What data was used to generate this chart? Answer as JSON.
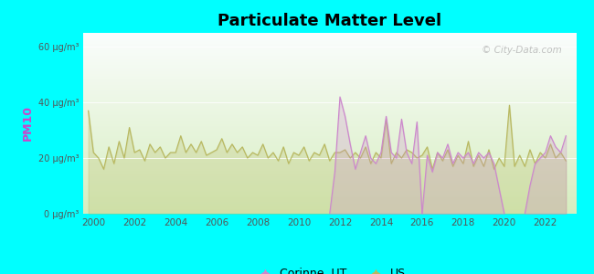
{
  "title": "Particulate Matter Level",
  "ylabel": "PM10",
  "background_color": "#00FFFF",
  "ylim": [
    0,
    65
  ],
  "yticks": [
    0,
    20,
    40,
    60
  ],
  "ytick_labels": [
    "0 μg/m³",
    "20 μg/m³",
    "40 μg/m³",
    "60 μg/m³"
  ],
  "xlim_start": 1999.5,
  "xlim_end": 2023.5,
  "xticks": [
    2000,
    2002,
    2004,
    2006,
    2008,
    2010,
    2012,
    2014,
    2016,
    2018,
    2020,
    2022
  ],
  "corinne_color": "#cc88cc",
  "us_color": "#b8b860",
  "watermark": "© City-Data.com",
  "legend_corinne": "Corinne, UT",
  "legend_us": "US",
  "us_data": {
    "years": [
      1999.75,
      2000.0,
      2000.25,
      2000.5,
      2000.75,
      2001.0,
      2001.25,
      2001.5,
      2001.75,
      2002.0,
      2002.25,
      2002.5,
      2002.75,
      2003.0,
      2003.25,
      2003.5,
      2003.75,
      2004.0,
      2004.25,
      2004.5,
      2004.75,
      2005.0,
      2005.25,
      2005.5,
      2005.75,
      2006.0,
      2006.25,
      2006.5,
      2006.75,
      2007.0,
      2007.25,
      2007.5,
      2007.75,
      2008.0,
      2008.25,
      2008.5,
      2008.75,
      2009.0,
      2009.25,
      2009.5,
      2009.75,
      2010.0,
      2010.25,
      2010.5,
      2010.75,
      2011.0,
      2011.25,
      2011.5,
      2011.75,
      2012.0,
      2012.25,
      2012.5,
      2012.75,
      2013.0,
      2013.25,
      2013.5,
      2013.75,
      2014.0,
      2014.25,
      2014.5,
      2014.75,
      2015.0,
      2015.25,
      2015.5,
      2015.75,
      2016.0,
      2016.25,
      2016.5,
      2016.75,
      2017.0,
      2017.25,
      2017.5,
      2017.75,
      2018.0,
      2018.25,
      2018.5,
      2018.75,
      2019.0,
      2019.25,
      2019.5,
      2019.75,
      2020.0,
      2020.25,
      2020.5,
      2020.75,
      2021.0,
      2021.25,
      2021.5,
      2021.75,
      2022.0,
      2022.25,
      2022.5,
      2022.75,
      2023.0
    ],
    "values": [
      37,
      22,
      20,
      16,
      24,
      18,
      26,
      20,
      31,
      22,
      23,
      19,
      25,
      22,
      24,
      20,
      22,
      22,
      28,
      22,
      25,
      22,
      26,
      21,
      22,
      23,
      27,
      22,
      25,
      22,
      24,
      20,
      22,
      21,
      25,
      20,
      22,
      19,
      24,
      18,
      22,
      21,
      24,
      19,
      22,
      21,
      25,
      19,
      22,
      22,
      23,
      20,
      22,
      20,
      24,
      18,
      22,
      20,
      34,
      18,
      22,
      20,
      23,
      22,
      20,
      21,
      24,
      16,
      22,
      19,
      23,
      17,
      21,
      18,
      26,
      17,
      21,
      17,
      23,
      16,
      20,
      17,
      39,
      17,
      21,
      17,
      23,
      18,
      22,
      20,
      25,
      20,
      22,
      19
    ]
  },
  "corinne_segments": [
    {
      "years": [
        2011.5,
        2011.75,
        2012.0,
        2012.25,
        2012.5,
        2012.75,
        2013.0,
        2013.25,
        2013.5,
        2013.75,
        2014.0,
        2014.25,
        2014.5,
        2014.75,
        2015.0,
        2015.25,
        2015.5,
        2015.75,
        2016.0
      ],
      "values": [
        0,
        15,
        42,
        35,
        25,
        16,
        22,
        28,
        20,
        18,
        22,
        35,
        22,
        20,
        34,
        22,
        18,
        33,
        0
      ]
    },
    {
      "years": [
        2016.0,
        2016.25,
        2016.5,
        2016.75,
        2017.0,
        2017.25,
        2017.5,
        2017.75,
        2018.0,
        2018.25,
        2018.5,
        2018.75,
        2019.0,
        2019.25,
        2019.5,
        2020.0
      ],
      "values": [
        0,
        21,
        15,
        22,
        20,
        25,
        18,
        22,
        20,
        22,
        18,
        22,
        20,
        22,
        18,
        0
      ]
    },
    {
      "years": [
        2021.0,
        2021.25,
        2021.5,
        2021.75,
        2022.0,
        2022.25,
        2022.5,
        2022.75,
        2023.0
      ],
      "values": [
        0,
        10,
        18,
        20,
        22,
        28,
        24,
        22,
        28
      ]
    }
  ]
}
